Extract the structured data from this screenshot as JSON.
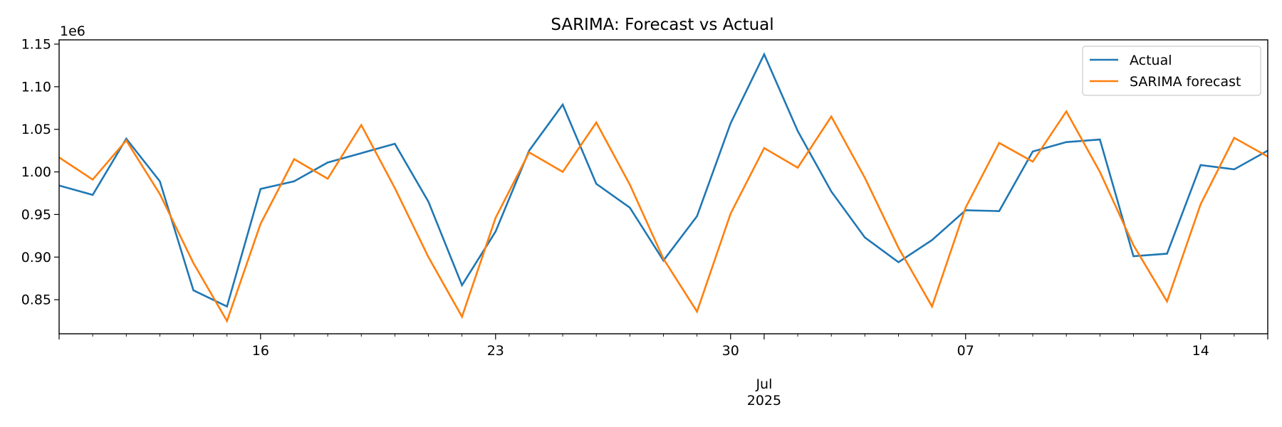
{
  "chart_data": {
    "type": "line",
    "title": "SARIMA: Forecast vs Actual",
    "xlabel": "",
    "ylabel": "",
    "y_offset_label": "1e6",
    "x": [
      "2025-06-10",
      "2025-06-11",
      "2025-06-12",
      "2025-06-13",
      "2025-06-14",
      "2025-06-15",
      "2025-06-16",
      "2025-06-17",
      "2025-06-18",
      "2025-06-19",
      "2025-06-20",
      "2025-06-21",
      "2025-06-22",
      "2025-06-23",
      "2025-06-24",
      "2025-06-25",
      "2025-06-26",
      "2025-06-27",
      "2025-06-28",
      "2025-06-29",
      "2025-06-30",
      "2025-07-01",
      "2025-07-02",
      "2025-07-03",
      "2025-07-04",
      "2025-07-05",
      "2025-07-06",
      "2025-07-07",
      "2025-07-08",
      "2025-07-09",
      "2025-07-10",
      "2025-07-11",
      "2025-07-12",
      "2025-07-13",
      "2025-07-14",
      "2025-07-15",
      "2025-07-16"
    ],
    "xlim": [
      "2025-06-10",
      "2025-07-16"
    ],
    "ylim": [
      0.81,
      1.155
    ],
    "yticks": [
      0.85,
      0.9,
      0.95,
      1.0,
      1.05,
      1.1,
      1.15
    ],
    "ytick_labels": [
      "0.85",
      "0.90",
      "0.95",
      "1.00",
      "1.05",
      "1.10",
      "1.15"
    ],
    "major_xticks": [
      "2025-06-16",
      "2025-06-23",
      "2025-06-30",
      "2025-07-07",
      "2025-07-14"
    ],
    "major_xtick_labels": [
      "16",
      "23",
      "30",
      "07",
      "14"
    ],
    "month_label": {
      "date": "2025-07-01",
      "month": "Jul",
      "year": "2025"
    },
    "grid": false,
    "legend": "top-right",
    "series": [
      {
        "name": "Actual",
        "color": "#1f77b4",
        "values": [
          0.984,
          0.973,
          1.039,
          0.989,
          0.861,
          0.842,
          0.98,
          0.989,
          1.011,
          1.022,
          1.033,
          0.965,
          0.867,
          0.93,
          1.025,
          1.079,
          0.986,
          0.958,
          0.896,
          0.948,
          1.057,
          1.138,
          1.048,
          0.977,
          0.923,
          0.894,
          0.92,
          0.955,
          0.954,
          1.024,
          1.035,
          1.038,
          0.901,
          0.904,
          1.008,
          1.003,
          1.025
        ]
      },
      {
        "name": "SARIMA forecast",
        "color": "#ff7f0e",
        "values": [
          1.017,
          0.991,
          1.037,
          0.974,
          0.893,
          0.825,
          0.939,
          1.015,
          0.992,
          1.055,
          0.981,
          0.9,
          0.83,
          0.946,
          1.023,
          1.0,
          1.058,
          0.985,
          0.898,
          0.836,
          0.951,
          1.028,
          1.005,
          1.065,
          0.993,
          0.911,
          0.842,
          0.958,
          1.034,
          1.012,
          1.071,
          1.0,
          0.914,
          0.848,
          0.962,
          1.04,
          1.018
        ]
      }
    ]
  }
}
